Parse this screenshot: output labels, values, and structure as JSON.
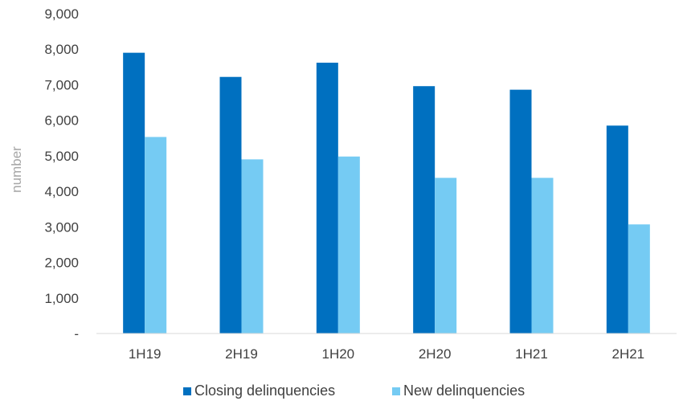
{
  "chart_data": {
    "type": "bar",
    "categories": [
      "1H19",
      "2H19",
      "1H20",
      "2H20",
      "1H21",
      "2H21"
    ],
    "series": [
      {
        "name": "Closing delinquencies",
        "values": [
          7900,
          7220,
          7620,
          6960,
          6860,
          5850
        ],
        "color": "#0070c0"
      },
      {
        "name": "New delinquencies",
        "values": [
          5530,
          4900,
          4980,
          4380,
          4380,
          3070
        ],
        "color": "#75cbf3"
      }
    ],
    "ylabel": "number",
    "ylim": [
      0,
      9000
    ],
    "yticks": [
      {
        "value": 0,
        "label": "-"
      },
      {
        "value": 1000,
        "label": "1,000"
      },
      {
        "value": 2000,
        "label": "2,000"
      },
      {
        "value": 3000,
        "label": "3,000"
      },
      {
        "value": 4000,
        "label": "4,000"
      },
      {
        "value": 5000,
        "label": "5,000"
      },
      {
        "value": 6000,
        "label": "6,000"
      },
      {
        "value": 7000,
        "label": "7,000"
      },
      {
        "value": 8000,
        "label": "8,000"
      },
      {
        "value": 9000,
        "label": "9,000"
      }
    ],
    "grid": false,
    "legend_position": "bottom"
  }
}
